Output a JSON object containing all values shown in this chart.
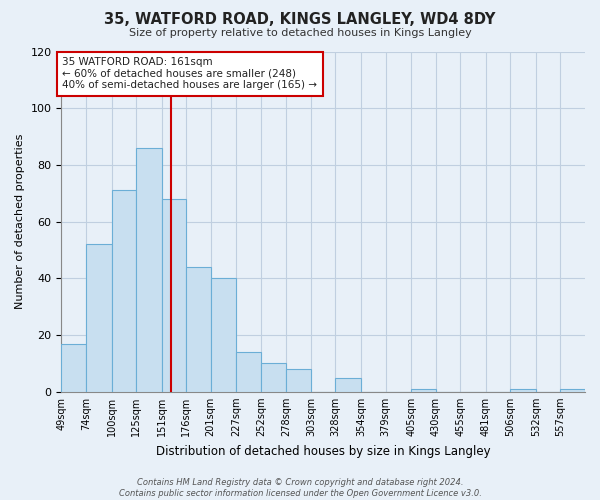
{
  "title": "35, WATFORD ROAD, KINGS LANGLEY, WD4 8DY",
  "subtitle": "Size of property relative to detached houses in Kings Langley",
  "xlabel": "Distribution of detached houses by size in Kings Langley",
  "ylabel": "Number of detached properties",
  "bar_color": "#c8dff0",
  "bar_edge_color": "#6baed6",
  "bin_labels": [
    "49sqm",
    "74sqm",
    "100sqm",
    "125sqm",
    "151sqm",
    "176sqm",
    "201sqm",
    "227sqm",
    "252sqm",
    "278sqm",
    "303sqm",
    "328sqm",
    "354sqm",
    "379sqm",
    "405sqm",
    "430sqm",
    "455sqm",
    "481sqm",
    "506sqm",
    "532sqm",
    "557sqm"
  ],
  "bin_edges": [
    49,
    74,
    100,
    125,
    151,
    176,
    201,
    227,
    252,
    278,
    303,
    328,
    354,
    379,
    405,
    430,
    455,
    481,
    506,
    532,
    557,
    582
  ],
  "counts": [
    17,
    52,
    71,
    86,
    68,
    44,
    40,
    14,
    10,
    8,
    0,
    5,
    0,
    0,
    1,
    0,
    0,
    0,
    1,
    0,
    1
  ],
  "property_size": 161,
  "vline_x": 161,
  "annotation_text": "35 WATFORD ROAD: 161sqm\n← 60% of detached houses are smaller (248)\n40% of semi-detached houses are larger (165) →",
  "annotation_box_color": "#ffffff",
  "annotation_border_color": "#cc0000",
  "ylim": [
    0,
    120
  ],
  "yticks": [
    0,
    20,
    40,
    60,
    80,
    100,
    120
  ],
  "footnote": "Contains HM Land Registry data © Crown copyright and database right 2024.\nContains public sector information licensed under the Open Government Licence v3.0.",
  "background_color": "#e8f0f8",
  "plot_bg_color": "#e8f0f8",
  "grid_color": "#c0cfe0"
}
